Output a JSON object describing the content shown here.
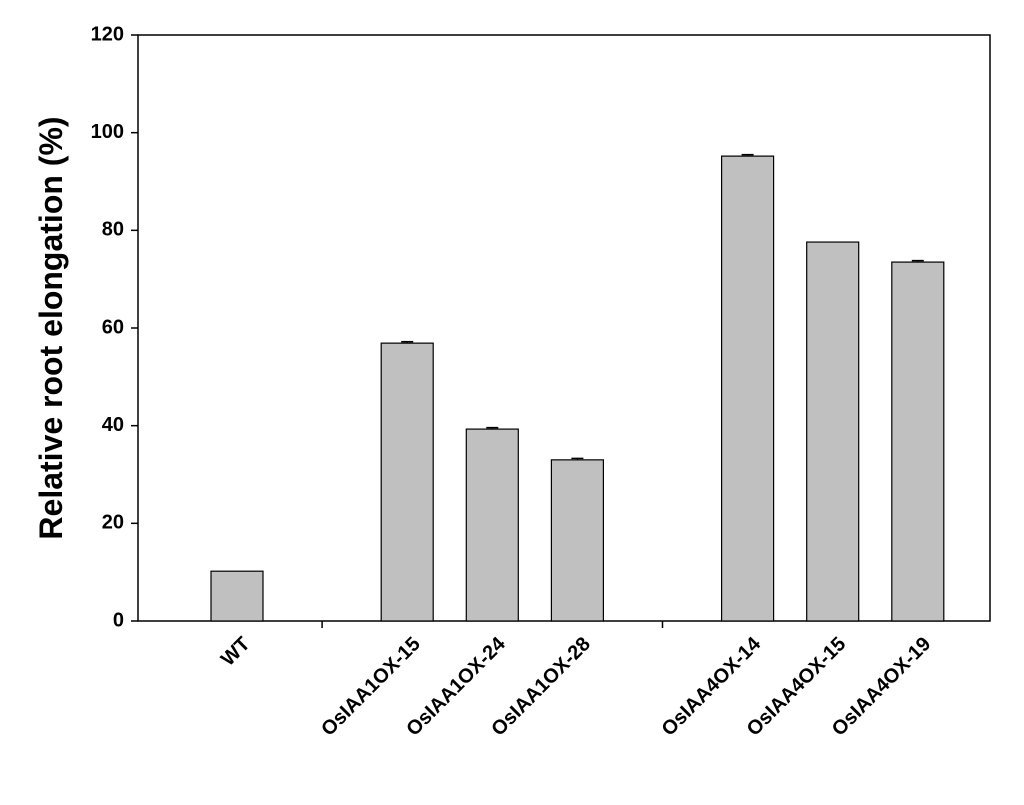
{
  "chart_data": {
    "type": "bar",
    "y_label": "Relative root elongation (%)",
    "categories": [
      "WT",
      null,
      "OsIAA1OX-15",
      "OsIAA1OX-24",
      "OsIAA1OX-28",
      null,
      "OsIAA4OX-14",
      "OsIAA4OX-15",
      "OsIAA4OX-19"
    ],
    "values": [
      10.2,
      null,
      56.9,
      39.3,
      33,
      null,
      95.2,
      77.6,
      73.5
    ],
    "errors": [
      0,
      null,
      0.3,
      0.3,
      0.3,
      null,
      0.3,
      0,
      0.3
    ],
    "color": "#c0c0c0",
    "ylim": [
      0,
      120
    ],
    "yticks": [
      0,
      20,
      40,
      60,
      80,
      100,
      120
    ],
    "grid": false
  }
}
